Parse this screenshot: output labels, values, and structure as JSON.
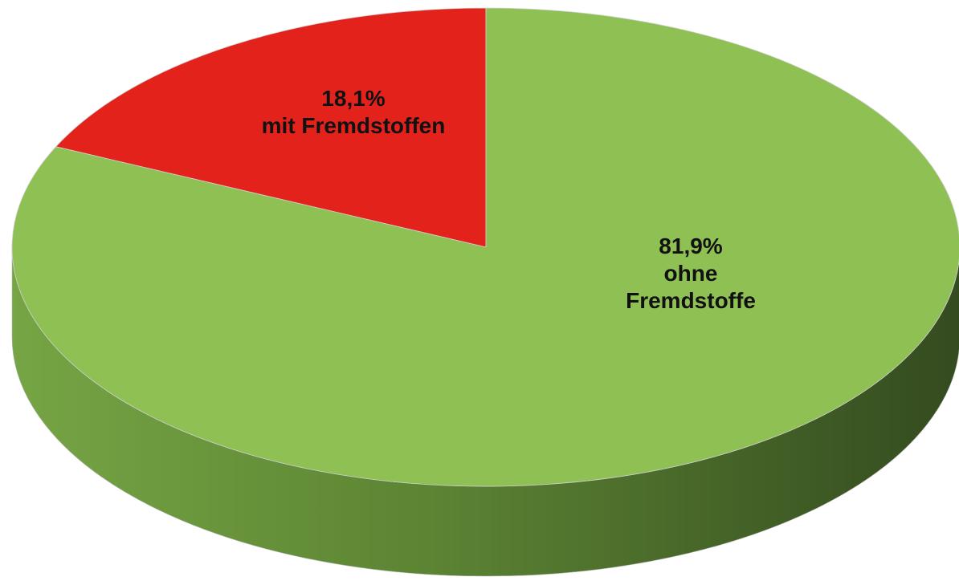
{
  "chart_data": {
    "type": "pie",
    "categories": [
      "mit Fremdstoffen",
      "ohne Fremdstoffe"
    ],
    "values": [
      18.1,
      81.9
    ],
    "value_labels": [
      "18,1%",
      "81,9%"
    ],
    "colors": [
      "#e3231b",
      "#8ec053"
    ]
  }
}
